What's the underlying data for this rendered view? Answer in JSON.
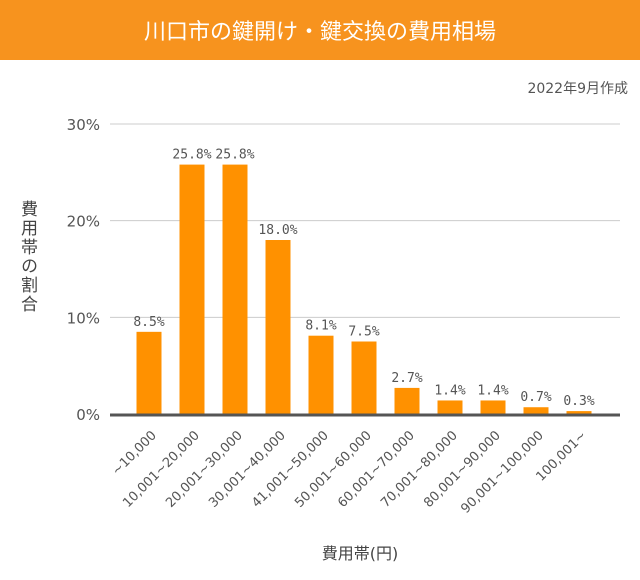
{
  "title": "川口市の鍵開け・鍵交換の費用相場",
  "date_note": "2022年9月作成",
  "chart_data": {
    "type": "bar",
    "title": "川口市の鍵開け・鍵交換の費用相場",
    "xlabel": "費用帯(円)",
    "ylabel": "費用帯の割合",
    "categories": [
      "~10,000",
      "10,001~20,000",
      "20,001~30,000",
      "30,001~40,000",
      "41,001~50,000",
      "50,001~60,000",
      "60,001~70,000",
      "70,001~80,000",
      "80,001~90,000",
      "90,001~100,000",
      "100,001~"
    ],
    "values": [
      8.5,
      25.8,
      25.8,
      18.0,
      8.1,
      7.5,
      2.7,
      1.4,
      1.4,
      0.7,
      0.3
    ],
    "value_labels": [
      "8.5%",
      "25.8%",
      "25.8%",
      "18.0%",
      "8.1%",
      "7.5%",
      "2.7%",
      "1.4%",
      "1.4%",
      "0.7%",
      "0.3%"
    ],
    "yticks": [
      "0%",
      "10%",
      "20%",
      "30%"
    ],
    "ylim": [
      0,
      30
    ],
    "grid": true,
    "bar_color": "#ff9100"
  }
}
